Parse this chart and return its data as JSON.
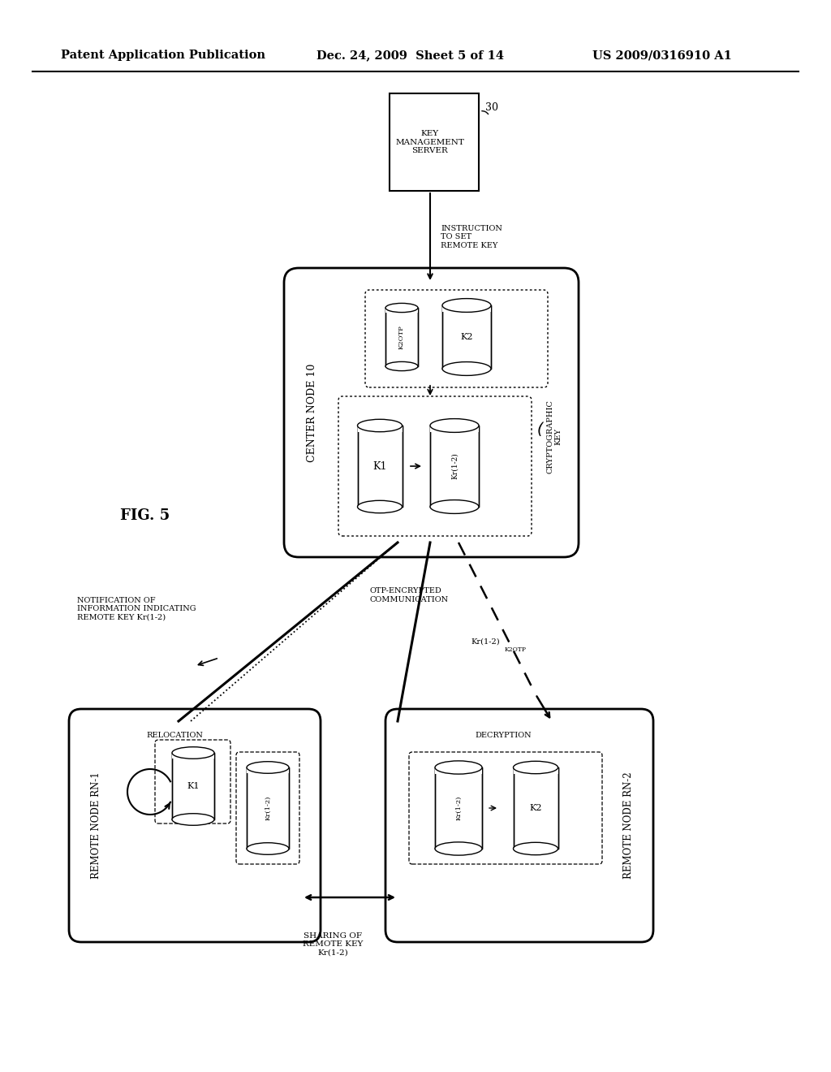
{
  "header_left": "Patent Application Publication",
  "header_mid": "Dec. 24, 2009  Sheet 5 of 14",
  "header_right": "US 2009/0316910 A1",
  "fig_label": "FIG. 5",
  "background_color": "#ffffff",
  "text_color": "#000000"
}
